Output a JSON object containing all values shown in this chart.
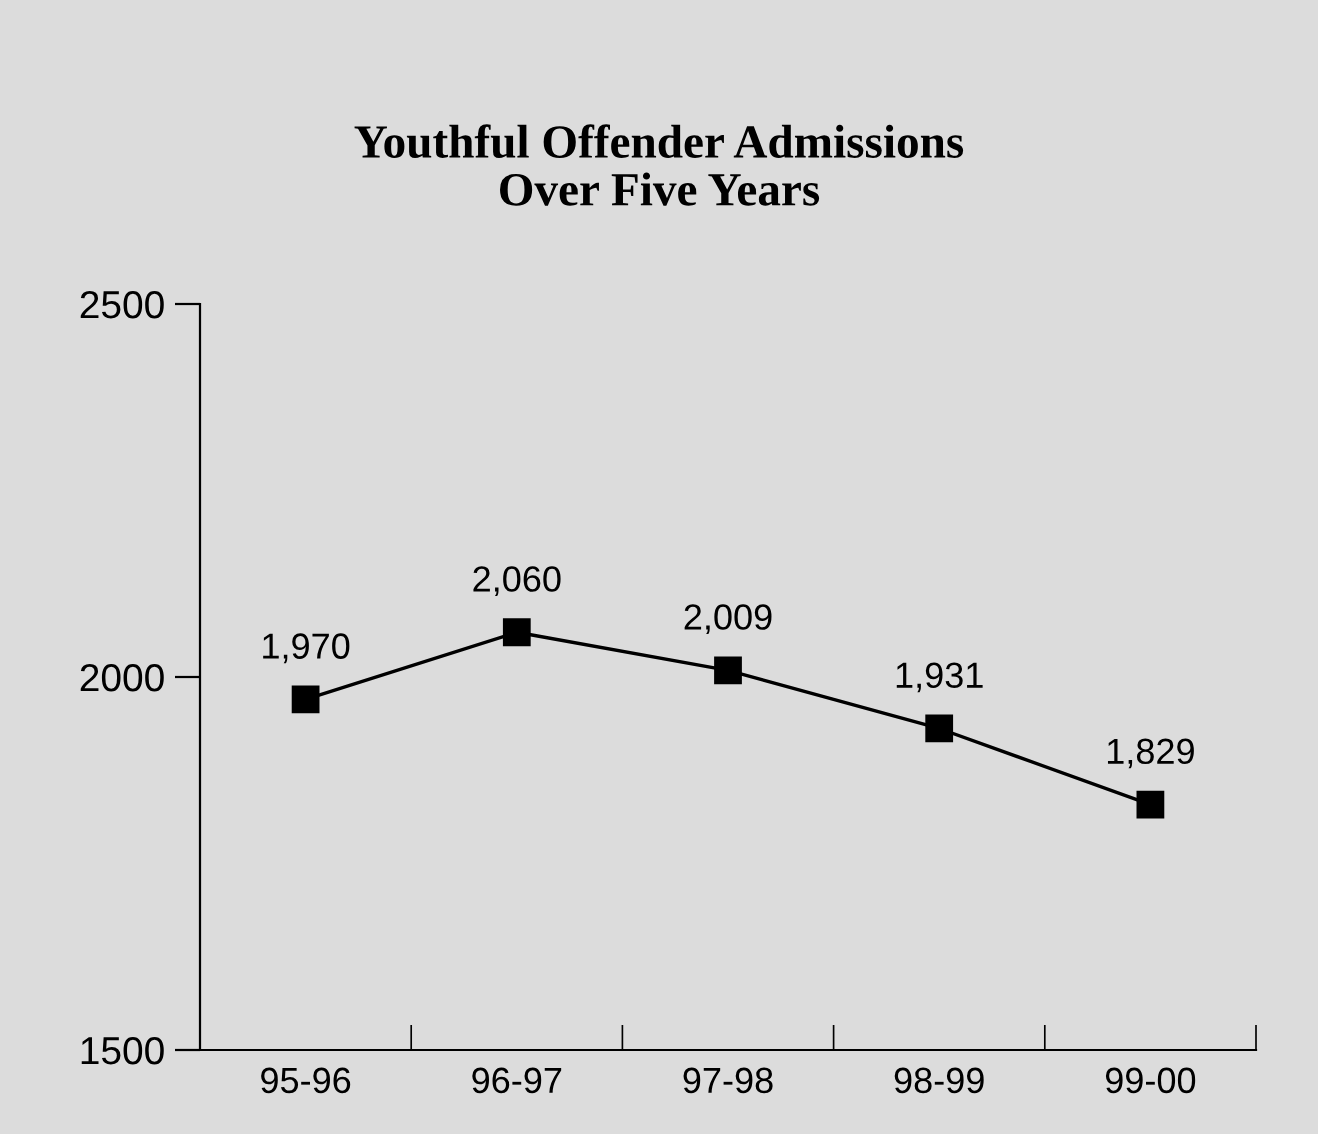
{
  "chart_data": {
    "type": "line",
    "title": "Youthful Offender Admissions\nOver Five Years",
    "categories": [
      "95-96",
      "96-97",
      "97-98",
      "98-99",
      "99-00"
    ],
    "series": [
      {
        "color": "#000000",
        "values": [
          1970,
          2060,
          2009,
          1931,
          1829
        ],
        "value_labels": [
          "1,970",
          "2,060",
          "2,009",
          "1,931",
          "1,829"
        ]
      }
    ],
    "ylim": [
      1500,
      2500
    ],
    "yticks": [
      1500,
      2000,
      2500
    ],
    "marker": "square",
    "line_style": "solid",
    "grid": false,
    "legend": false
  }
}
